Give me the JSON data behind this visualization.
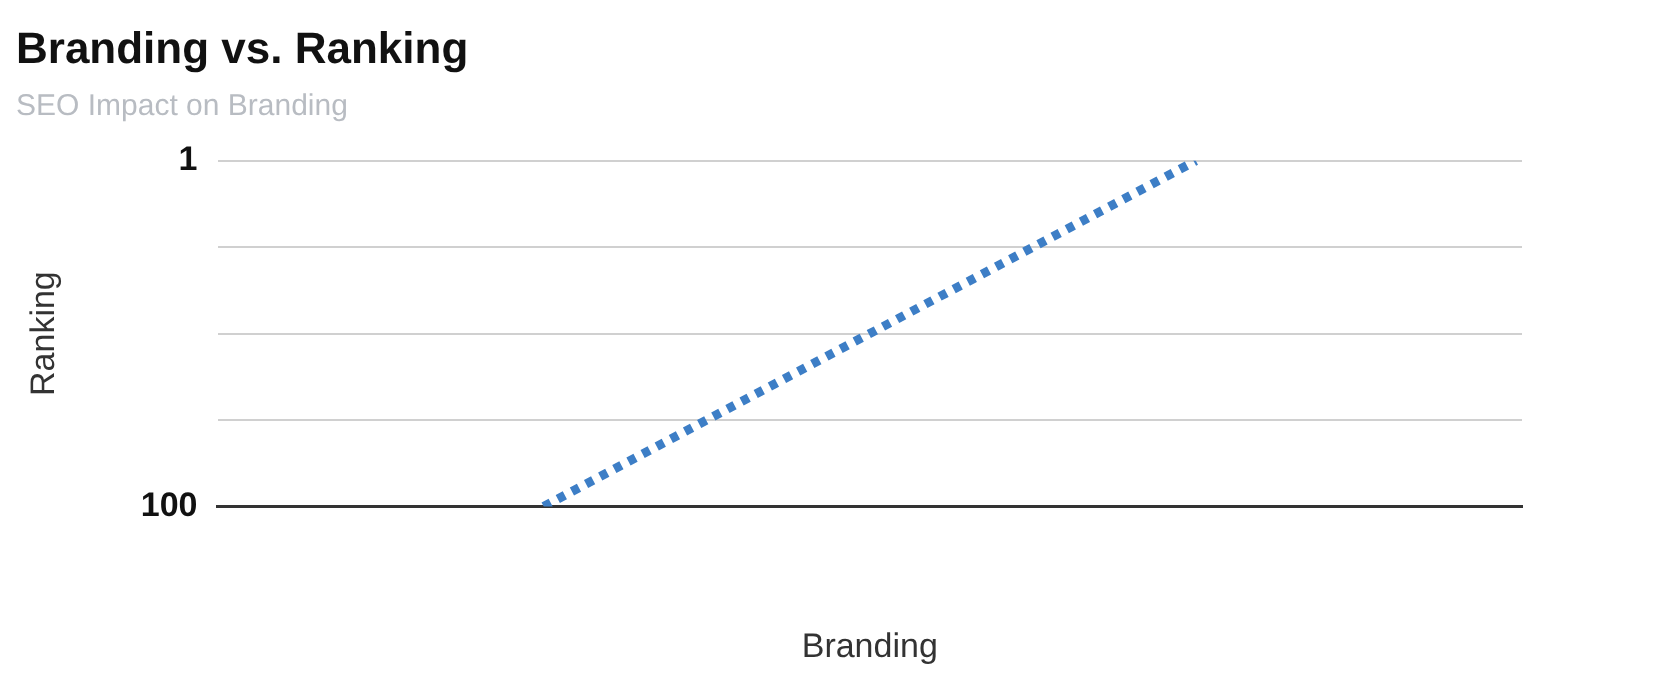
{
  "chart_data": {
    "type": "line",
    "title": "Branding vs. Ranking",
    "subtitle": "SEO Impact on Branding",
    "xlabel": "Branding",
    "ylabel": "Ranking",
    "categories": [
      null,
      null
    ],
    "series": [
      {
        "color": "#3d7ec6",
        "values": [
          100,
          1
        ]
      }
    ],
    "ylim": [
      100,
      1
    ],
    "yticks": [
      1,
      {
        "value": 25.75,
        "label": null
      },
      {
        "value": 50.5,
        "label": null
      },
      {
        "value": 75.25,
        "label": null
      },
      100
    ],
    "grid": "y",
    "legend": false,
    "marker": "none",
    "line_style": "dotted"
  }
}
